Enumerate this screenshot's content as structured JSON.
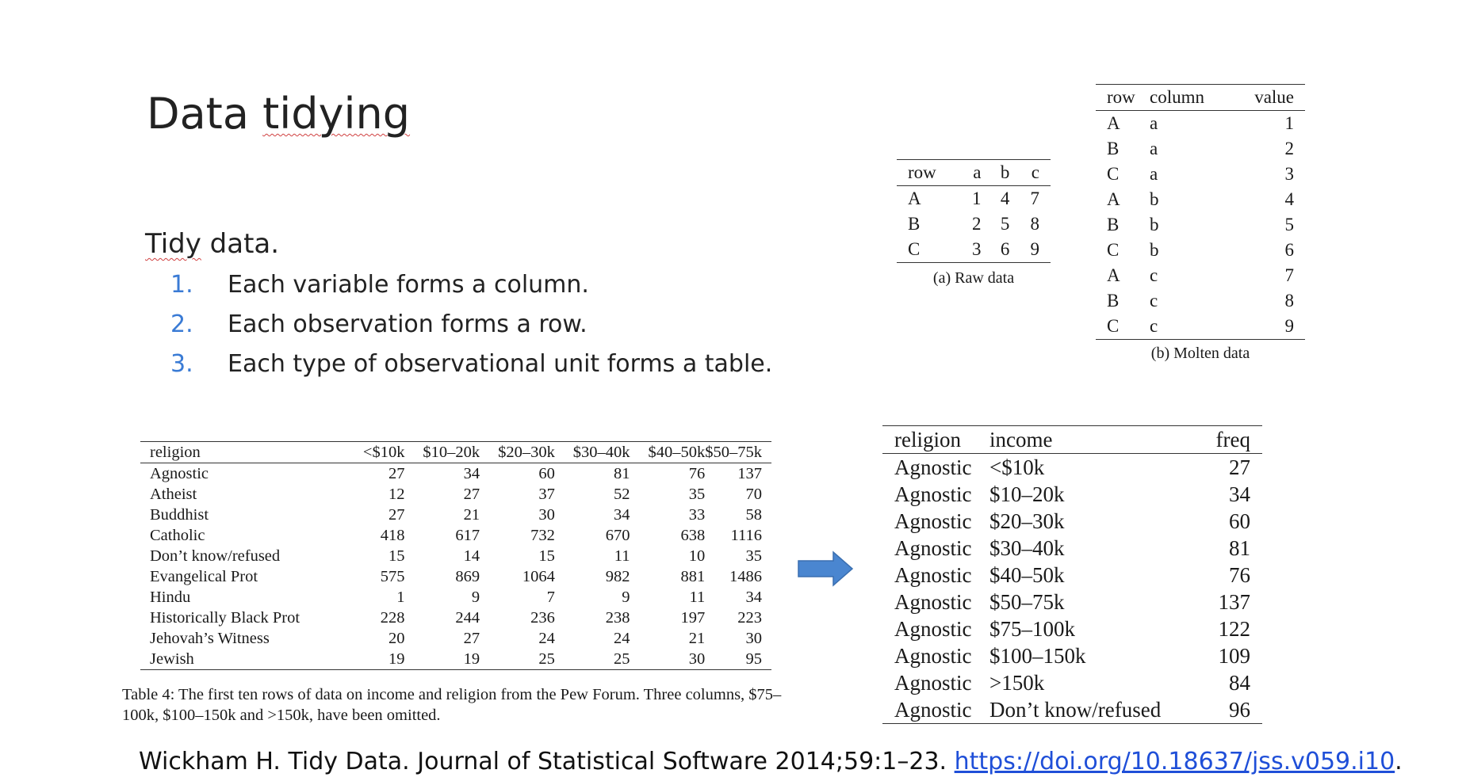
{
  "title_part1": "Data ",
  "title_part2": "tidying",
  "tidy": {
    "heading_part1": "Tidy",
    "heading_part2": " data.",
    "rules": [
      {
        "num": "1.",
        "text": "Each variable forms a column."
      },
      {
        "num": "2.",
        "text": "Each observation forms a row."
      },
      {
        "num": "3.",
        "text": "Each type of observational unit forms a table."
      }
    ]
  },
  "raw": {
    "headers": [
      "row",
      "a",
      "b",
      "c"
    ],
    "rows": [
      [
        "A",
        "1",
        "4",
        "7"
      ],
      [
        "B",
        "2",
        "5",
        "8"
      ],
      [
        "C",
        "3",
        "6",
        "9"
      ]
    ],
    "caption": "(a) Raw data"
  },
  "molten": {
    "headers": [
      "row",
      "column",
      "value"
    ],
    "rows": [
      [
        "A",
        "a",
        "1"
      ],
      [
        "B",
        "a",
        "2"
      ],
      [
        "C",
        "a",
        "3"
      ],
      [
        "A",
        "b",
        "4"
      ],
      [
        "B",
        "b",
        "5"
      ],
      [
        "C",
        "b",
        "6"
      ],
      [
        "A",
        "c",
        "7"
      ],
      [
        "B",
        "c",
        "8"
      ],
      [
        "C",
        "c",
        "9"
      ]
    ],
    "caption": "(b) Molten data"
  },
  "pew": {
    "headers": [
      "religion",
      "<$10k",
      "$10–20k",
      "$20–30k",
      "$30–40k",
      "$40–50k",
      "$50–75k"
    ],
    "rows": [
      [
        "Agnostic",
        "27",
        "34",
        "60",
        "81",
        "76",
        "137"
      ],
      [
        "Atheist",
        "12",
        "27",
        "37",
        "52",
        "35",
        "70"
      ],
      [
        "Buddhist",
        "27",
        "21",
        "30",
        "34",
        "33",
        "58"
      ],
      [
        "Catholic",
        "418",
        "617",
        "732",
        "670",
        "638",
        "1116"
      ],
      [
        "Don’t know/refused",
        "15",
        "14",
        "15",
        "11",
        "10",
        "35"
      ],
      [
        "Evangelical Prot",
        "575",
        "869",
        "1064",
        "982",
        "881",
        "1486"
      ],
      [
        "Hindu",
        "1",
        "9",
        "7",
        "9",
        "11",
        "34"
      ],
      [
        "Historically Black Prot",
        "228",
        "244",
        "236",
        "238",
        "197",
        "223"
      ],
      [
        "Jehovah’s Witness",
        "20",
        "27",
        "24",
        "24",
        "21",
        "30"
      ],
      [
        "Jewish",
        "19",
        "19",
        "25",
        "25",
        "30",
        "95"
      ]
    ],
    "caption": "Table 4: The first ten rows of data on income and religion from the Pew Forum. Three columns, $75–100k, $100–150k and >150k, have been omitted."
  },
  "long": {
    "headers": [
      "religion",
      "income",
      "freq"
    ],
    "rows": [
      [
        "Agnostic",
        "<$10k",
        "27"
      ],
      [
        "Agnostic",
        "$10–20k",
        "34"
      ],
      [
        "Agnostic",
        "$20–30k",
        "60"
      ],
      [
        "Agnostic",
        "$30–40k",
        "81"
      ],
      [
        "Agnostic",
        "$40–50k",
        "76"
      ],
      [
        "Agnostic",
        "$50–75k",
        "137"
      ],
      [
        "Agnostic",
        "$75–100k",
        "122"
      ],
      [
        "Agnostic",
        "$100–150k",
        "109"
      ],
      [
        "Agnostic",
        ">150k",
        "84"
      ],
      [
        "Agnostic",
        "Don’t know/refused",
        "96"
      ]
    ]
  },
  "citation": {
    "text": "Wickham H. Tidy Data. Journal of Statistical Software 2014;59:1–23. ",
    "link": "https://doi.org/10.18637/jss.v059.i10",
    "trailing": "."
  },
  "colors": {
    "list_number": "#3a7bd5",
    "link": "#1f4fd8",
    "arrow": "#4a86d0"
  },
  "icons": {
    "arrow": "right-arrow-icon"
  }
}
